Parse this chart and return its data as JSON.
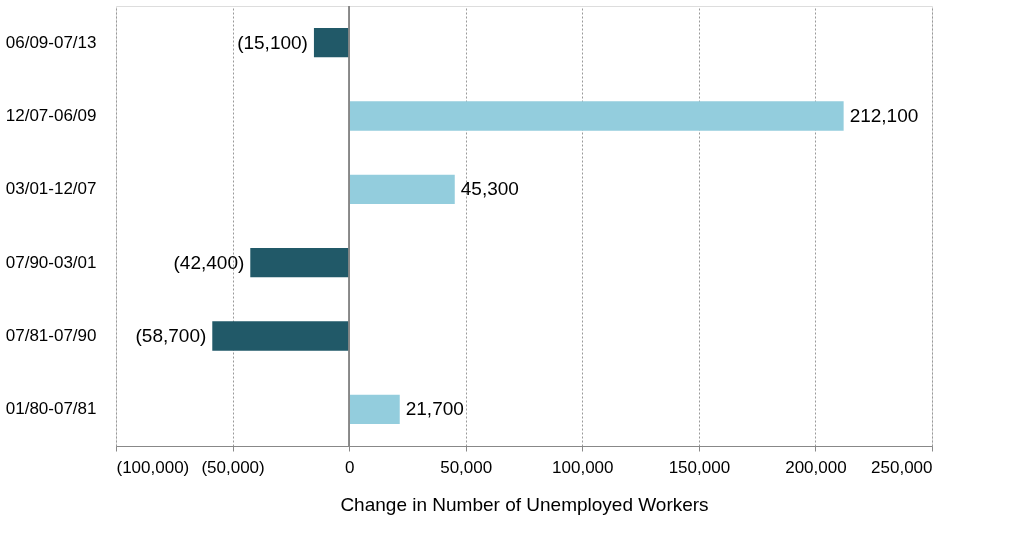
{
  "chart_data": {
    "type": "bar",
    "orientation": "horizontal",
    "xlabel": "Change in Number of Unemployed Workers",
    "categories": [
      "06/09-07/13",
      "12/07-06/09",
      "03/01-12/07",
      "07/90-03/01",
      "07/81-07/90",
      "01/80-07/81"
    ],
    "values": [
      -15100,
      212100,
      45300,
      -42400,
      -58700,
      21700
    ],
    "colors": [
      "#215968",
      "#93cddd",
      "#93cddd",
      "#215968",
      "#215968",
      "#93cddd"
    ],
    "value_labels": [
      "(15,100)",
      "212,100",
      "45,300",
      "(42,400)",
      "(58,700)",
      "21,700"
    ],
    "xlim": [
      -100000,
      250000
    ],
    "xticks": [
      {
        "value": -100000,
        "label": "(100,000)"
      },
      {
        "value": -50000,
        "label": "(50,000)"
      },
      0,
      {
        "value": 50000,
        "label": "50,000"
      },
      {
        "value": 100000,
        "label": "100,000"
      },
      {
        "value": 150000,
        "label": "150,000"
      },
      {
        "value": 200000,
        "label": "200,000"
      },
      {
        "value": 250000,
        "label": "250,000"
      }
    ],
    "grid": "x"
  }
}
